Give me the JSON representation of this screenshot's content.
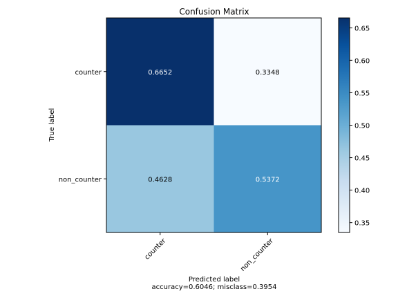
{
  "chart_data": {
    "type": "heatmap",
    "title": "Confusion Matrix",
    "xlabel": "Predicted label",
    "xlabel_sub": "accuracy=0.6046; misclass=0.3954",
    "ylabel": "True label",
    "x_categories": [
      "counter",
      "non_counter"
    ],
    "y_categories": [
      "counter",
      "non_counter"
    ],
    "values": [
      [
        0.6652,
        0.3348
      ],
      [
        0.4628,
        0.5372
      ]
    ],
    "value_labels": [
      [
        "0.6652",
        "0.3348"
      ],
      [
        "0.4628",
        "0.5372"
      ]
    ],
    "colormap": "Blues",
    "colormap_range": [
      0.3348,
      0.6652
    ],
    "colorbar_ticks": [
      0.35,
      0.4,
      0.45,
      0.5,
      0.55,
      0.6,
      0.65
    ],
    "colorbar_tick_labels": [
      "0.35",
      "0.40",
      "0.45",
      "0.50",
      "0.55",
      "0.60",
      "0.65"
    ],
    "x_tick_rotation_deg": 45,
    "grid": false
  }
}
